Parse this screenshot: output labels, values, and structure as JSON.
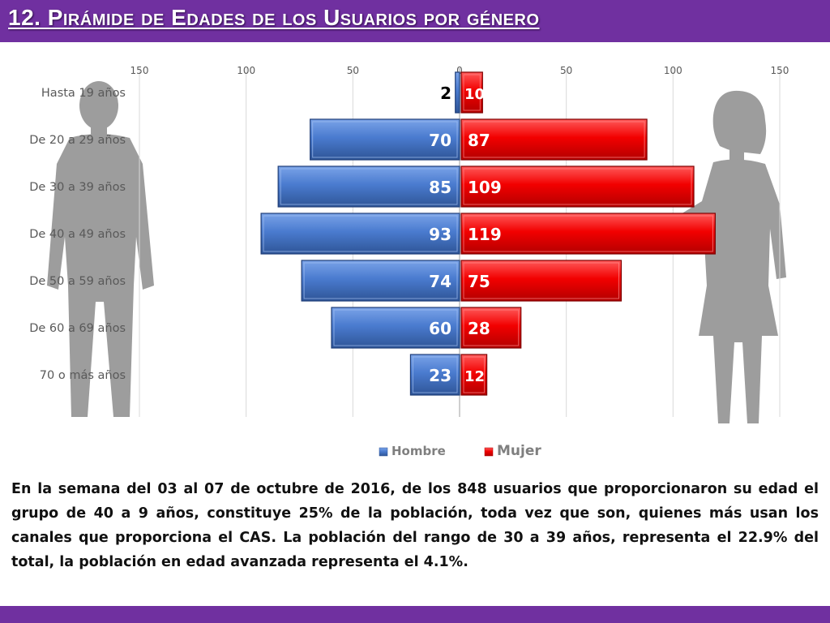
{
  "title": "12. Pirámide de Edades de los Usuarios por género",
  "colors": {
    "title_bar": "#7030a0",
    "hombre": "#4472c4",
    "mujer": "#ff0000",
    "silhouette": "#8c8c8c"
  },
  "icons": [
    "man-silhouette",
    "woman-silhouette"
  ],
  "chart_data": {
    "type": "bar",
    "orientation": "horizontal-pyramid",
    "categories": [
      "Hasta 19 años",
      "De 20 a 29 años",
      "De 30 a 39 años",
      "De 40 a 49 años",
      "De 50 a 59 años",
      "De 60 a 69 años",
      "70 o más años"
    ],
    "series": [
      {
        "name": "Hombre",
        "values": [
          2,
          70,
          85,
          93,
          74,
          60,
          23
        ]
      },
      {
        "name": "Mujer",
        "values": [
          10,
          87,
          109,
          119,
          75,
          28,
          12
        ]
      }
    ],
    "xlim": [
      -150,
      150
    ],
    "x_tick_labels": [
      "150",
      "100",
      "50",
      "0",
      "50",
      "100",
      "150"
    ],
    "legend_position": "bottom",
    "grid": true
  },
  "body_text": "En la semana del 03 al 07 de octubre de 2016, de los 848 usuarios  que proporcionaron su edad el grupo de 40 a 9 años, constituye 25% de la población, toda vez que son, quienes más usan los canales que proporciona el CAS. La población del rango de 30 a 39 años, representa el 22.9% del total, la población en edad avanzada representa el 4.1%."
}
